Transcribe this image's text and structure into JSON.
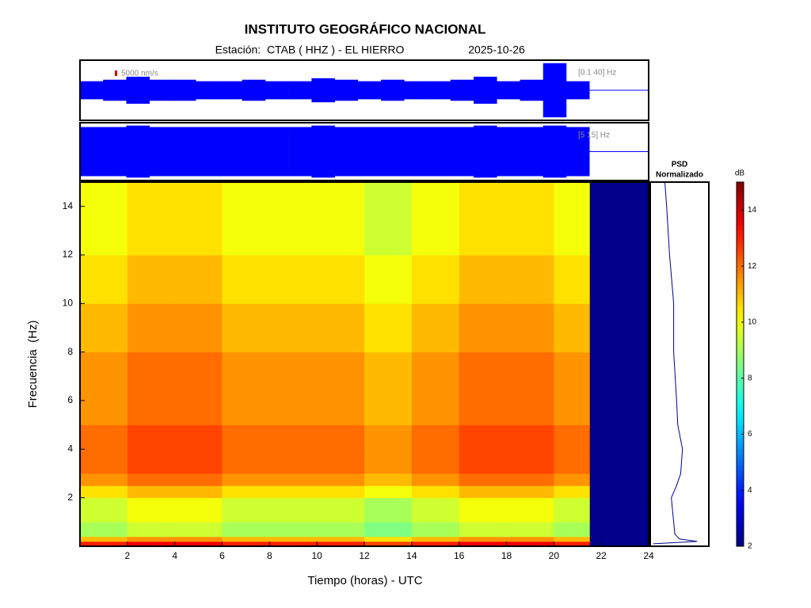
{
  "chart_data": {
    "type": "heatmap",
    "title": "INSTITUTO GEOGRÁFICO NACIONAL",
    "station": "Estación:  CTAB ( HHZ ) - EL HIERRO",
    "date": "2025-10-26",
    "x_label": "Tiempo (horas) - UTC",
    "y_label": "Frecuencia  (Hz)",
    "xlim": [
      0,
      24
    ],
    "xticks": [
      2,
      4,
      6,
      8,
      10,
      12,
      14,
      16,
      18,
      20,
      22,
      24
    ],
    "ylim": [
      0,
      15
    ],
    "yticks": [
      2,
      4,
      6,
      8,
      10,
      12,
      14
    ],
    "time_edges": [
      0,
      2,
      4,
      6,
      8,
      10,
      12,
      14,
      16,
      18,
      20,
      21.5
    ],
    "freq_edges": [
      0,
      0.2,
      0.4,
      1,
      2,
      2.5,
      3,
      4,
      5,
      6,
      8,
      10,
      12,
      15
    ],
    "values": [
      [
        13,
        13.5,
        13.5,
        13,
        13,
        13,
        12.5,
        13,
        13.5,
        13.5,
        13
      ],
      [
        11,
        11.5,
        11.5,
        11,
        11,
        11,
        10.5,
        11,
        11.5,
        11.5,
        11
      ],
      [
        9,
        9.5,
        9.5,
        9,
        9,
        9,
        8.5,
        9,
        9.5,
        9.5,
        9
      ],
      [
        9.5,
        10,
        10,
        9.5,
        9.5,
        9.5,
        9,
        9.5,
        10,
        10,
        9.5
      ],
      [
        10.5,
        11,
        11,
        10.5,
        10.5,
        10.5,
        10,
        10.5,
        11,
        11,
        10.5
      ],
      [
        11.5,
        12,
        12,
        11.5,
        11.5,
        11.5,
        11,
        11.5,
        12,
        12,
        11.5
      ],
      [
        12,
        12.5,
        12.5,
        12,
        12,
        12,
        11.5,
        12,
        12.5,
        12.5,
        12
      ],
      [
        12,
        12.5,
        12.5,
        12,
        12,
        12,
        11.5,
        12,
        12.5,
        12.5,
        12
      ],
      [
        11.5,
        12,
        12,
        11.5,
        11.5,
        11.5,
        11,
        11.5,
        12,
        12,
        11.5
      ],
      [
        11.5,
        12,
        12,
        11.5,
        11.5,
        11.5,
        11,
        11.5,
        12,
        12,
        11.5
      ],
      [
        11,
        11.5,
        11.5,
        11,
        11,
        11,
        10.5,
        11,
        11.5,
        11.5,
        11
      ],
      [
        10.5,
        11,
        11,
        10.5,
        10.5,
        10.5,
        10,
        10.5,
        11,
        11,
        10.5
      ],
      [
        10,
        10.5,
        10.5,
        10,
        10,
        10,
        9.5,
        10,
        10.5,
        10.5,
        10
      ]
    ],
    "nodata_color": "#00008b",
    "colorbar": {
      "label": "dB",
      "lim": [
        2,
        15
      ],
      "ticks": [
        2,
        4,
        6,
        8,
        10,
        12,
        14
      ]
    },
    "traces": [
      {
        "scale_label": "5000 nm/s",
        "band": "[0.1 40] Hz",
        "color": "#0000ff",
        "amplitude": [
          0.3,
          0.35,
          0.45,
          0.35,
          0.35,
          0.3,
          0.3,
          0.35,
          0.3,
          0.3,
          0.4,
          0.35,
          0.3,
          0.35,
          0.3,
          0.3,
          0.35,
          0.45,
          0.3,
          0.35,
          0.9,
          0.3
        ]
      },
      {
        "band": "[5 15] Hz",
        "color": "#0000ff",
        "amplitude": [
          0.85,
          0.85,
          0.9,
          0.85,
          0.85,
          0.85,
          0.85,
          0.85,
          0.85,
          0.85,
          0.9,
          0.85,
          0.85,
          0.85,
          0.85,
          0.85,
          0.85,
          0.9,
          0.85,
          0.85,
          0.9,
          0.85
        ]
      }
    ],
    "psd": {
      "title": "PSD",
      "subtitle": "Normalizado",
      "color": "#00008b",
      "freq": [
        0.1,
        0.2,
        0.3,
        0.5,
        1,
        2,
        2.5,
        3,
        4,
        5,
        6,
        8,
        10,
        12,
        14,
        15
      ],
      "values": [
        0.05,
        0.8,
        0.5,
        0.42,
        0.4,
        0.36,
        0.45,
        0.52,
        0.55,
        0.47,
        0.45,
        0.4,
        0.4,
        0.33,
        0.28,
        0.25
      ]
    }
  }
}
